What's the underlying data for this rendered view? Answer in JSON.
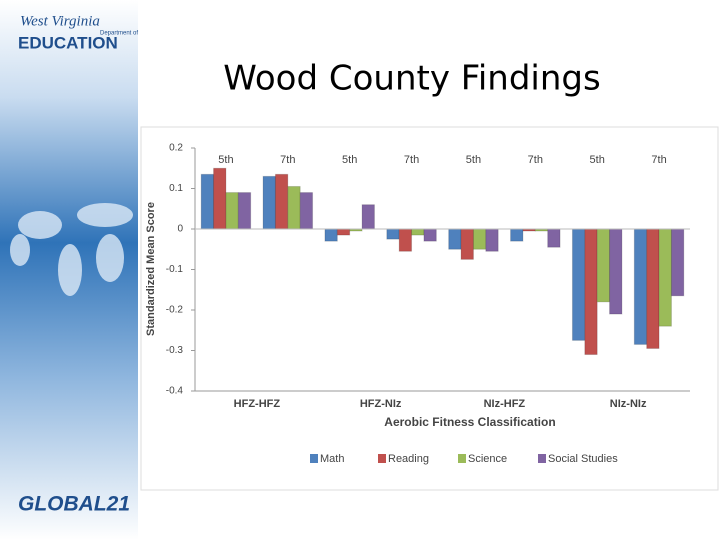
{
  "slide": {
    "title": "Wood County Findings",
    "logo_top": {
      "line1": "West Virginia",
      "line2": "Department of",
      "line3": "EDUCATION"
    },
    "logo_bottom": {
      "name": "GLOBAL21"
    }
  },
  "chart_data": {
    "type": "bar",
    "y_label": "Standardized Mean Score",
    "x_label": "Aerobic Fitness Classification",
    "categories": [
      "5th",
      "7th",
      "5th",
      "7th",
      "5th",
      "7th",
      "5th",
      "7th"
    ],
    "groups": [
      "HFZ-HFZ",
      "HFZ-NIz",
      "NIz-HFZ",
      "NIz-NIz"
    ],
    "ylim": [
      -0.4,
      0.2
    ],
    "yticks": [
      0.2,
      0.1,
      0,
      -0.1,
      -0.2,
      -0.3,
      -0.4
    ],
    "grid": false,
    "legend": "bottom",
    "series": [
      {
        "name": "Math",
        "color": "#4f81bd",
        "values": [
          0.135,
          0.13,
          -0.03,
          -0.025,
          -0.05,
          -0.03,
          -0.275,
          -0.285
        ]
      },
      {
        "name": "Reading",
        "color": "#c0504d",
        "values": [
          0.15,
          0.135,
          -0.015,
          -0.055,
          -0.075,
          -0.005,
          -0.31,
          -0.295
        ]
      },
      {
        "name": "Science",
        "color": "#9bbb59",
        "values": [
          0.09,
          0.105,
          -0.005,
          -0.015,
          -0.05,
          -0.005,
          -0.18,
          -0.24
        ]
      },
      {
        "name": "Social Studies",
        "color": "#8064a2",
        "values": [
          0.09,
          0.09,
          0.06,
          -0.03,
          -0.055,
          -0.045,
          -0.21,
          -0.165
        ]
      }
    ]
  }
}
